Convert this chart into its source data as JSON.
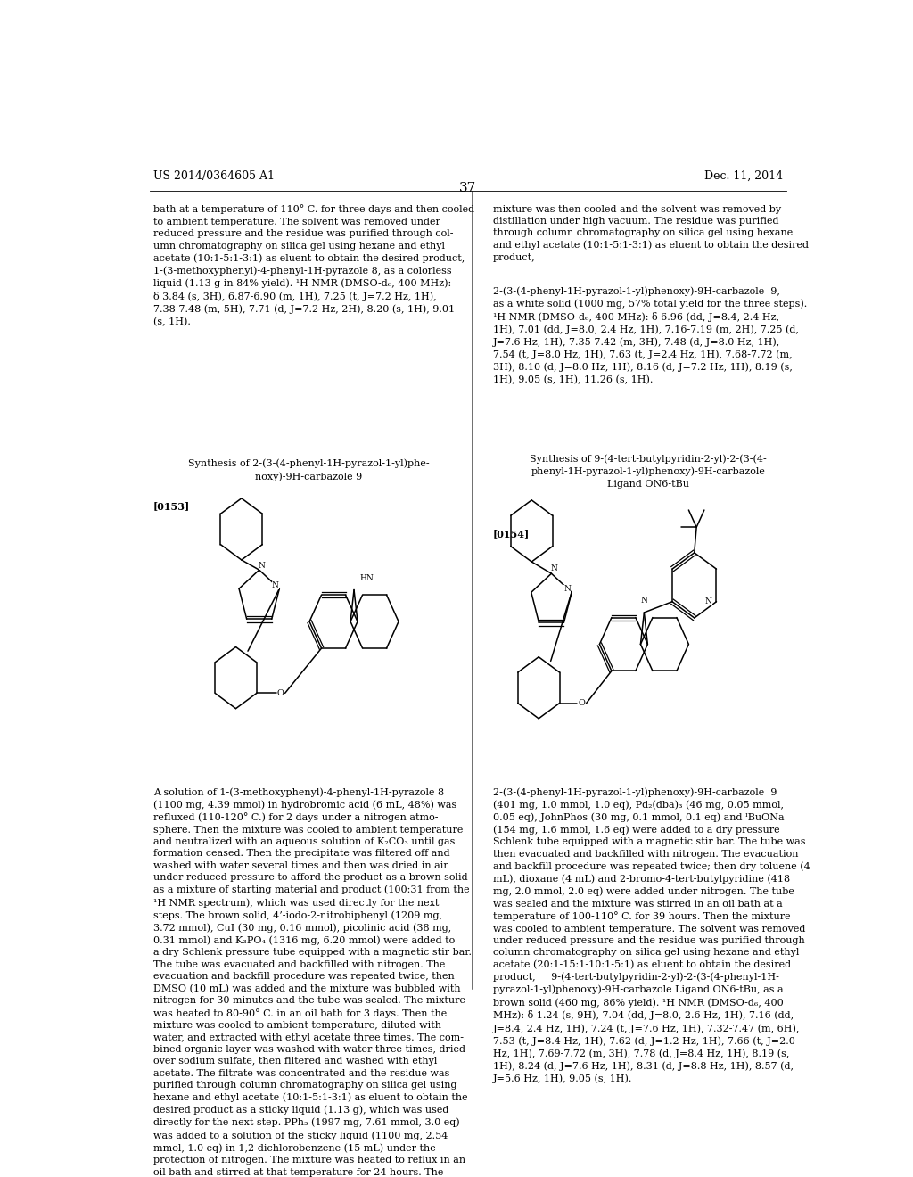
{
  "page_num": "37",
  "header_left": "US 2014/0364605 A1",
  "header_right": "Dec. 11, 2014",
  "background_color": "#ffffff",
  "text_color": "#000000",
  "font_size_body": 8.0,
  "font_size_header": 9.0,
  "font_size_page_num": 11,
  "top_text_left": "bath at a temperature of 110° C. for three days and then cooled\nto ambient temperature. The solvent was removed under\nreduced pressure and the residue was purified through col-\numn chromatography on silica gel using hexane and ethyl\nacetate (10:1-5:1-3:1) as eluent to obtain the desired product,\n1-(3-methoxyphenyl)-4-phenyl-1H-pyrazole 8, as a colorless\nliquid (1.13 g in 84% yield). ¹H NMR (DMSO-d₆, 400 MHz):\nδ 3.84 (s, 3H), 6.87-6.90 (m, 1H), 7.25 (t, J=7.2 Hz, 1H),\n7.38-7.48 (m, 5H), 7.71 (d, J=7.2 Hz, 2H), 8.20 (s, 1H), 9.01\n(s, 1H).",
  "top_text_right1": "mixture was then cooled and the solvent was removed by\ndistillation under high vacuum. The residue was purified\nthrough column chromatography on silica gel using hexane\nand ethyl acetate (10:1-5:1-3:1) as eluent to obtain the desired\nproduct,",
  "top_text_right2": "2-(3-(4-phenyl-1H-pyrazol-1-yl)phenoxy)-9H-carbazole  9,\nas a white solid (1000 mg, 57% total yield for the three steps).\n¹H NMR (DMSO-d₆, 400 MHz): δ 6.96 (dd, J=8.4, 2.4 Hz,\n1H), 7.01 (dd, J=8.0, 2.4 Hz, 1H), 7.16-7.19 (m, 2H), 7.25 (d,\nJ=7.6 Hz, 1H), 7.35-7.42 (m, 3H), 7.48 (d, J=8.0 Hz, 1H),\n7.54 (t, J=8.0 Hz, 1H), 7.63 (t, J=2.4 Hz, 1H), 7.68-7.72 (m,\n3H), 8.10 (d, J=8.0 Hz, 1H), 8.16 (d, J=7.2 Hz, 1H), 8.19 (s,\n1H), 9.05 (s, 1H), 11.26 (s, 1H).",
  "section_title_left": "Synthesis of 2-(3-(4-phenyl-1H-pyrazol-1-yl)phe-\nnoxy)-9H-carbazole 9",
  "section_title_right": "Synthesis of 9-(4-tert-butylpyridin-2-yl)-2-(3-(4-\nphenyl-1H-pyrazol-1-yl)phenoxy)-9H-carbazole\nLigand ON6-tBu",
  "label_0153": "[0153]",
  "label_0154": "[0154]",
  "bottom_text_left": "A solution of 1-(3-methoxyphenyl)-4-phenyl-1H-pyrazole 8\n(1100 mg, 4.39 mmol) in hydrobromic acid (6 mL, 48%) was\nrefluxed (110-120° C.) for 2 days under a nitrogen atmo-\nsphere. Then the mixture was cooled to ambient temperature\nand neutralized with an aqueous solution of K₂CO₃ until gas\nformation ceased. Then the precipitate was filtered off and\nwashed with water several times and then was dried in air\nunder reduced pressure to afford the product as a brown solid\nas a mixture of starting material and product (100:31 from the\n¹H NMR spectrum), which was used directly for the next\nsteps. The brown solid, 4’-iodo-2-nitrobiphenyl (1209 mg,\n3.72 mmol), CuI (30 mg, 0.16 mmol), picolinic acid (38 mg,\n0.31 mmol) and K₃PO₄ (1316 mg, 6.20 mmol) were added to\na dry Schlenk pressure tube equipped with a magnetic stir bar.\nThe tube was evacuated and backfilled with nitrogen. The\nevacuation and backfill procedure was repeated twice, then\nDMSO (10 mL) was added and the mixture was bubbled with\nnitrogen for 30 minutes and the tube was sealed. The mixture\nwas heated to 80-90° C. in an oil bath for 3 days. Then the\nmixture was cooled to ambient temperature, diluted with\nwater, and extracted with ethyl acetate three times. The com-\nbined organic layer was washed with water three times, dried\nover sodium sulfate, then filtered and washed with ethyl\nacetate. The filtrate was concentrated and the residue was\npurified through column chromatography on silica gel using\nhexane and ethyl acetate (10:1-5:1-3:1) as eluent to obtain the\ndesired product as a sticky liquid (1.13 g), which was used\ndirectly for the next step. PPh₃ (1997 mg, 7.61 mmol, 3.0 eq)\nwas added to a solution of the sticky liquid (1100 mg, 2.54\nmmol, 1.0 eq) in 1,2-dichlorobenzene (15 mL) under the\nprotection of nitrogen. The mixture was heated to reflux in an\noil bath and stirred at that temperature for 24 hours. The",
  "bottom_text_right": "2-(3-(4-phenyl-1H-pyrazol-1-yl)phenoxy)-9H-carbazole  9\n(401 mg, 1.0 mmol, 1.0 eq), Pd₂(dba)₃ (46 mg, 0.05 mmol,\n0.05 eq), JohnPhos (30 mg, 0.1 mmol, 0.1 eq) and ᴵBuONa\n(154 mg, 1.6 mmol, 1.6 eq) were added to a dry pressure\nSchlenk tube equipped with a magnetic stir bar. The tube was\nthen evacuated and backfilled with nitrogen. The evacuation\nand backfill procedure was repeated twice; then dry toluene (4\nmL), dioxane (4 mL) and 2-bromo-4-tert-butylpyridine (418\nmg, 2.0 mmol, 2.0 eq) were added under nitrogen. The tube\nwas sealed and the mixture was stirred in an oil bath at a\ntemperature of 100-110° C. for 39 hours. Then the mixture\nwas cooled to ambient temperature. The solvent was removed\nunder reduced pressure and the residue was purified through\ncolumn chromatography on silica gel using hexane and ethyl\nacetate (20:1-15:1-10:1-5:1) as eluent to obtain the desired\nproduct,     9-(4-tert-butylpyridin-2-yl)-2-(3-(4-phenyl-1H-\npyrazol-1-yl)phenoxy)-9H-carbazole Ligand ON6-tBu, as a\nbrown solid (460 mg, 86% yield). ¹H NMR (DMSO-d₆, 400\nMHz): δ 1.24 (s, 9H), 7.04 (dd, J=8.0, 2.6 Hz, 1H), 7.16 (dd,\nJ=8.4, 2.4 Hz, 1H), 7.24 (t, J=7.6 Hz, 1H), 7.32-7.47 (m, 6H),\n7.53 (t, J=8.4 Hz, 1H), 7.62 (d, J=1.2 Hz, 1H), 7.66 (t, J=2.0\nHz, 1H), 7.69-7.72 (m, 3H), 7.78 (d, J=8.4 Hz, 1H), 8.19 (s,\n1H), 8.24 (d, J=7.6 Hz, 1H), 8.31 (d, J=8.8 Hz, 1H), 8.57 (d,\nJ=5.6 Hz, 1H), 9.05 (s, 1H)."
}
